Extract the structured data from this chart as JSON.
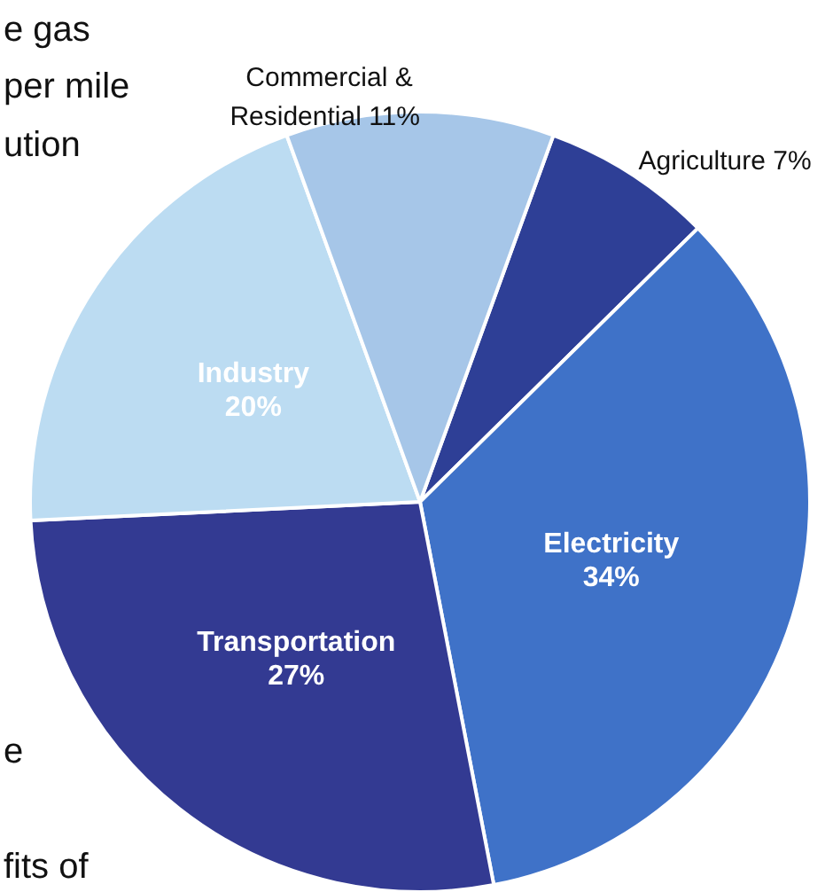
{
  "chart_data": {
    "type": "pie",
    "categories": [
      "Agriculture",
      "Electricity",
      "Transportation",
      "Industry",
      "Commercial & Residential"
    ],
    "values": [
      7,
      34,
      27,
      20,
      11
    ],
    "colors": [
      "#2e3f96",
      "#3f72c8",
      "#333a92",
      "#bcdcf2",
      "#a6c6e8"
    ],
    "value_labels": [
      "7%",
      "34%",
      "27%",
      "20%",
      "11%"
    ],
    "annotations": [
      "e gas",
      "per mile",
      "ution",
      "e",
      "fits of"
    ],
    "legend": false
  }
}
